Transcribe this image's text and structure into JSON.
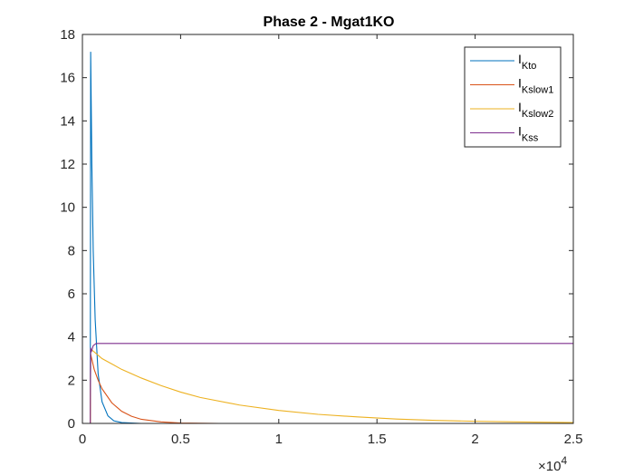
{
  "chart_data": {
    "type": "line",
    "title": "Phase 2 - Mgat1KO",
    "xlabel": "",
    "ylabel": "",
    "xlim": [
      0,
      25000
    ],
    "ylim": [
      0,
      18
    ],
    "x_ticks": [
      0,
      5000,
      10000,
      15000,
      20000,
      25000
    ],
    "x_tick_labels": [
      "0",
      "0.5",
      "1",
      "1.5",
      "2",
      "2.5"
    ],
    "x_exponent_label": "×10",
    "x_exponent": "4",
    "y_ticks": [
      0,
      2,
      4,
      6,
      8,
      10,
      12,
      14,
      16,
      18
    ],
    "y_tick_labels": [
      "0",
      "2",
      "4",
      "6",
      "8",
      "10",
      "12",
      "14",
      "16",
      "18"
    ],
    "legend_position": "top-right",
    "grid": false,
    "series": [
      {
        "name": "I",
        "name_sub": "Kto",
        "color": "#0072BD",
        "x": [
          0,
          400,
          420,
          480,
          550,
          650,
          800,
          1000,
          1300,
          1600,
          2000,
          3000,
          5000,
          10000,
          25000
        ],
        "y": [
          0,
          0,
          17.2,
          12,
          8,
          4.8,
          2.3,
          1.0,
          0.35,
          0.12,
          0.04,
          0,
          0,
          0,
          0
        ]
      },
      {
        "name": "I",
        "name_sub": "Kslow1",
        "color": "#D95319",
        "x": [
          0,
          400,
          420,
          600,
          800,
          1000,
          1500,
          2000,
          2500,
          3000,
          4000,
          5000,
          7000,
          10000,
          25000
        ],
        "y": [
          0,
          0,
          3.2,
          2.5,
          2.0,
          1.6,
          0.95,
          0.56,
          0.33,
          0.19,
          0.07,
          0.02,
          0,
          0,
          0
        ]
      },
      {
        "name": "I",
        "name_sub": "Kslow2",
        "color": "#EDB120",
        "x": [
          0,
          400,
          420,
          1000,
          2000,
          3000,
          4000,
          5000,
          6000,
          8000,
          10000,
          12000,
          14000,
          16000,
          18000,
          20000,
          22000,
          25000
        ],
        "y": [
          0,
          0,
          3.45,
          3.0,
          2.5,
          2.1,
          1.75,
          1.45,
          1.2,
          0.85,
          0.6,
          0.42,
          0.3,
          0.2,
          0.14,
          0.1,
          0.07,
          0.04
        ]
      },
      {
        "name": "I",
        "name_sub": "Kss",
        "color": "#7E2F8E",
        "x": [
          0,
          400,
          420,
          450,
          550,
          700,
          900,
          5000,
          25000
        ],
        "y": [
          0,
          0,
          3.5,
          3.3,
          3.6,
          3.7,
          3.7,
          3.7,
          3.7
        ]
      }
    ]
  }
}
